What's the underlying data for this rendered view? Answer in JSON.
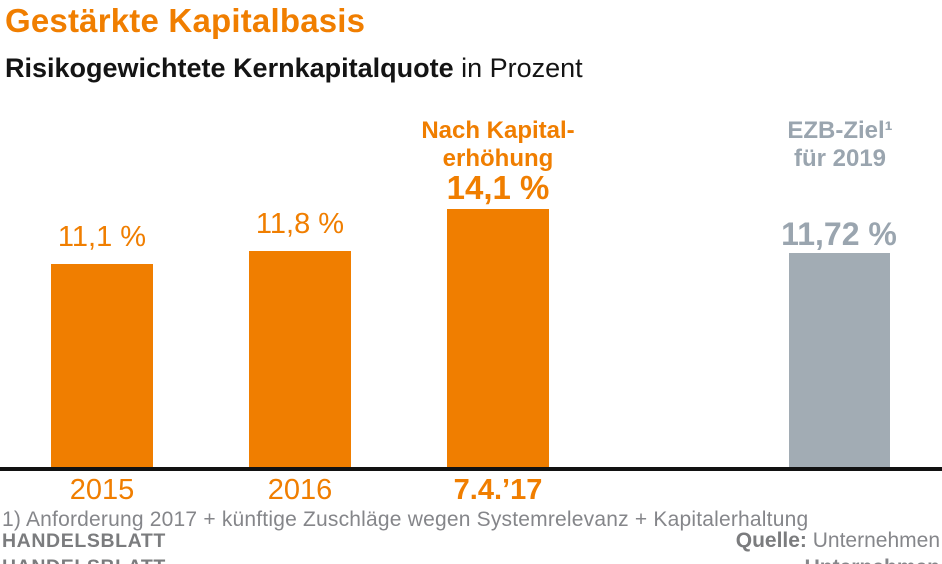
{
  "header": {
    "title": "Gestärkte Kapitalbasis",
    "subtitle_bold": "Risikogewichtete Kernkapitalquote",
    "subtitle_regular": " in Prozent"
  },
  "chart_data": {
    "type": "bar",
    "title": "Gestärkte Kapitalbasis",
    "subtitle": "Risikogewichtete Kernkapitalquote in Prozent",
    "unit": "Prozent",
    "categories": [
      "2015",
      "2016",
      "7.4.’17",
      ""
    ],
    "values": [
      11.1,
      11.8,
      14.1,
      11.72
    ],
    "bar_labels": [
      "11,1 %",
      "11,8 %",
      "14,1 %",
      "11,72 %"
    ],
    "bar_colors": [
      "#F07E00",
      "#F07E00",
      "#F07E00",
      "#A2ACB4"
    ],
    "annotations": [
      {
        "bar": 2,
        "line1": "Nach Kapital-",
        "line2": "erhöhung",
        "color": "#F07E00"
      },
      {
        "bar": 3,
        "line1": "EZB-Ziel¹",
        "line2": "für 2019",
        "color": "#9AA5AF"
      }
    ],
    "grid": false,
    "legend": false,
    "y_axis": "hidden",
    "baseline_color": "#121212"
  },
  "footer": {
    "footnote": "1) Anforderung 2017 + künftige Zuschläge wegen Systemrelevanz + Kapitalerhaltung",
    "brand": "HANDELSBLATT",
    "source_label": "Quelle:",
    "source_value": " Unternehmen"
  },
  "colors": {
    "accent_orange": "#F07E00",
    "bar_gray": "#A2ACB4",
    "gray_label_text": "#9AA5AF",
    "footer_text_gray": "#85868A",
    "brand_gray": "#7B7C7E",
    "axis_black": "#121212"
  }
}
